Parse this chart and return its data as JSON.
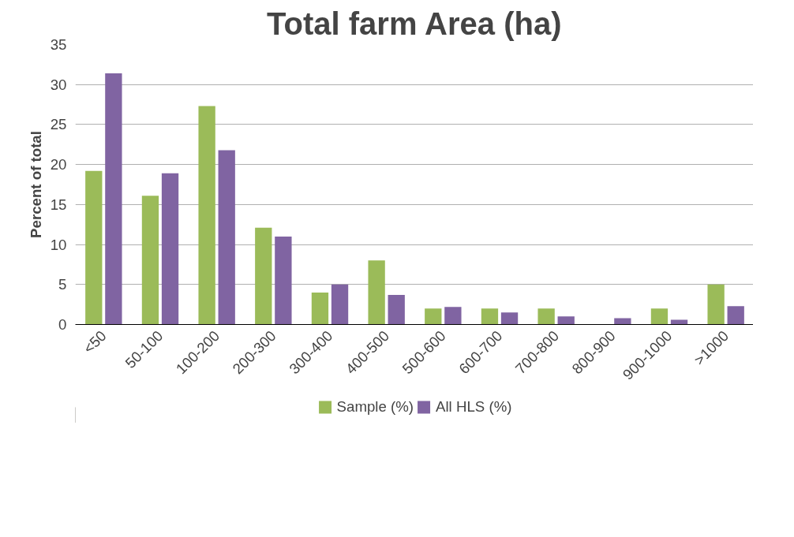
{
  "chart_data": {
    "type": "bar",
    "title": "Total farm Area (ha)",
    "ylabel": "Percent of total",
    "categories": [
      "<50",
      "50-100",
      "100-200",
      "200-300",
      "300-400",
      "400-500",
      "500-600",
      "600-700",
      "700-800",
      "800-900",
      "900-1000",
      ">1000"
    ],
    "series": [
      {
        "name": "Sample (%)",
        "color": "#9bbb59",
        "values": [
          19.2,
          16.1,
          27.3,
          12.1,
          4.0,
          8.0,
          2.0,
          2.0,
          2.0,
          0,
          2.0,
          5.0
        ]
      },
      {
        "name": "All HLS (%)",
        "color": "#8064a2",
        "values": [
          31.4,
          18.9,
          21.8,
          11.0,
          5.0,
          3.7,
          2.2,
          1.5,
          1.0,
          0.8,
          0.6,
          2.3
        ]
      }
    ],
    "ylim": [
      0,
      35
    ],
    "yticks": [
      0,
      5,
      10,
      15,
      20,
      25,
      30,
      35
    ],
    "grid": "y",
    "legend": "bottom"
  }
}
